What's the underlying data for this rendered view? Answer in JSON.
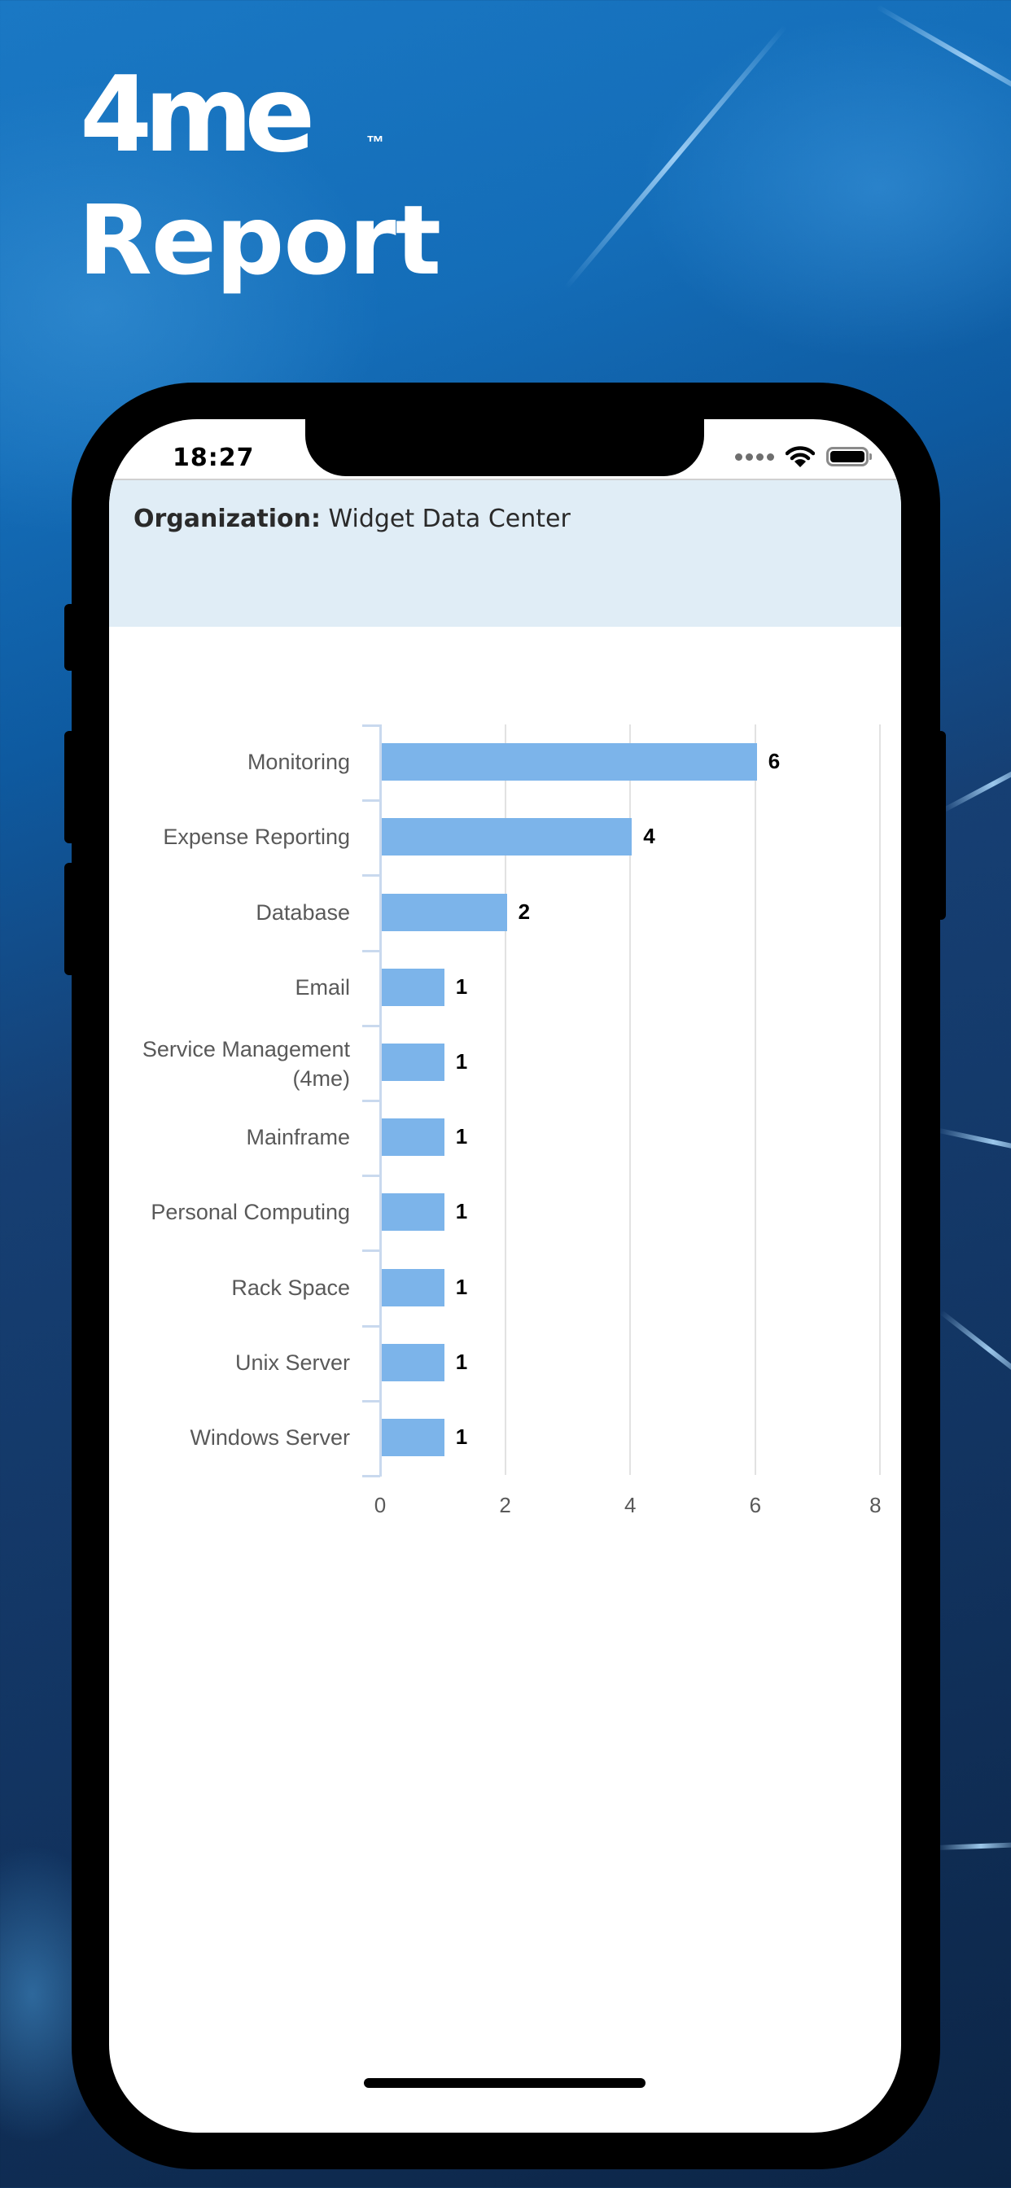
{
  "brand": {
    "logo": "4me",
    "trademark": "™",
    "title": "Report"
  },
  "status_bar": {
    "time": "18:27",
    "icons": [
      "signal-dots-icon",
      "wifi-icon",
      "battery-icon"
    ]
  },
  "organization": {
    "label": "Organization:",
    "value": "Widget Data Center"
  },
  "colors": {
    "bar": "#7cb4ea",
    "header_band": "#e0edf6",
    "axis": "#c9d9ee",
    "gridline": "#e2e2e2"
  },
  "chart_data": {
    "type": "bar",
    "orientation": "horizontal",
    "title": "",
    "xlabel": "",
    "ylabel": "",
    "categories": [
      "Monitoring",
      "Expense Reporting",
      "Database",
      "Email",
      "Service Management (4me)",
      "Mainframe",
      "Personal Computing",
      "Rack Space",
      "Unix Server",
      "Windows Server"
    ],
    "category_lines": [
      [
        "Monitoring"
      ],
      [
        "Expense Reporting"
      ],
      [
        "Database"
      ],
      [
        "Email"
      ],
      [
        "Service Management",
        "(4me)"
      ],
      [
        "Mainframe"
      ],
      [
        "Personal Computing"
      ],
      [
        "Rack Space"
      ],
      [
        "Unix Server"
      ],
      [
        "Windows Server"
      ]
    ],
    "values": [
      6,
      4,
      2,
      1,
      1,
      1,
      1,
      1,
      1,
      1
    ],
    "data_labels": [
      "6",
      "4",
      "2",
      "1",
      "1",
      "1",
      "1",
      "1",
      "1",
      "1"
    ],
    "xlim": [
      0,
      8
    ],
    "x_ticks": [
      "0",
      "2",
      "4",
      "6",
      "8"
    ],
    "grid": true,
    "legend": "none"
  }
}
